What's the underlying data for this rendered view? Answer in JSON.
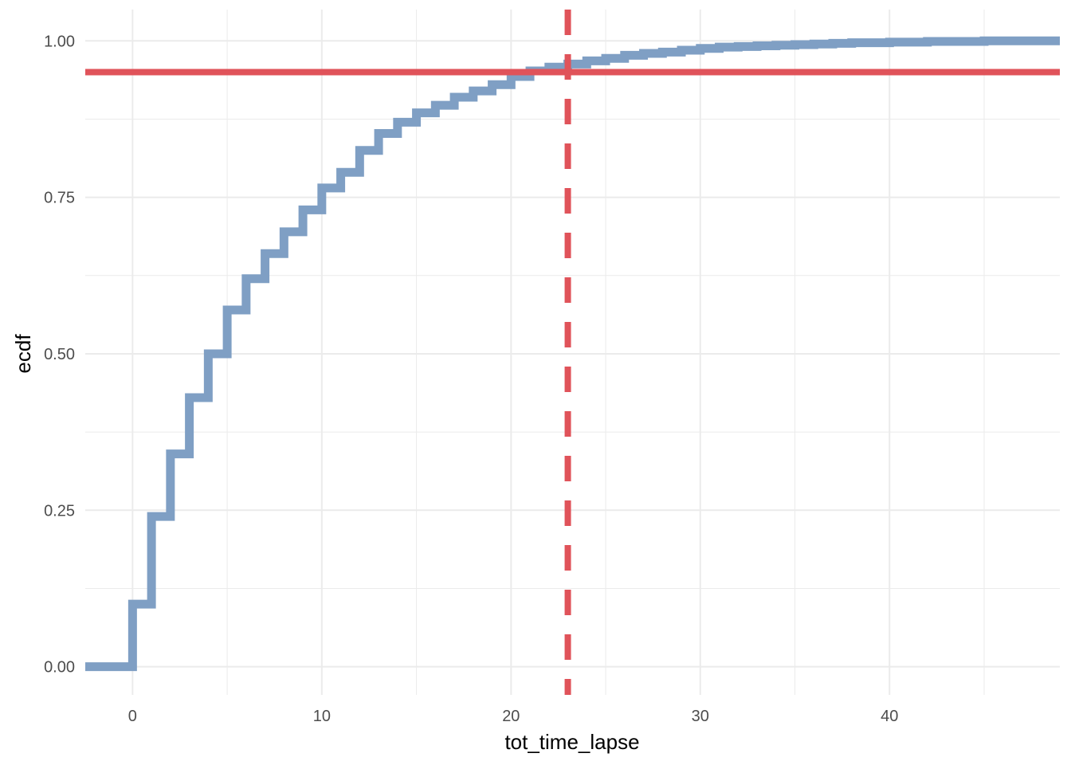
{
  "chart_data": {
    "type": "line",
    "step": true,
    "xlabel": "tot_time_lapse",
    "ylabel": "ecdf",
    "xlim": [
      -2.5,
      49
    ],
    "ylim": [
      -0.045,
      1.05
    ],
    "x_ticks": [
      0,
      10,
      20,
      30,
      40
    ],
    "x_minor_ticks": [
      5,
      15,
      25,
      35,
      45
    ],
    "y_ticks": [
      0.0,
      0.25,
      0.5,
      0.75,
      1.0
    ],
    "y_tick_labels": [
      "0.00",
      "0.25",
      "0.50",
      "0.75",
      "1.00"
    ],
    "y_minor_ticks": [
      0.125,
      0.375,
      0.625,
      0.875
    ],
    "grid": true,
    "series": [
      {
        "color": "#7f9fc4",
        "x": [
          -2.5,
          0,
          1,
          2,
          3,
          4,
          5,
          6,
          7,
          8,
          9,
          10,
          11,
          12,
          13,
          14,
          15,
          16,
          17,
          18,
          19,
          20,
          21,
          22,
          23,
          24,
          25,
          26,
          27,
          28,
          29,
          30,
          31,
          32,
          33,
          34,
          35,
          36,
          37,
          38,
          39,
          40,
          41,
          42,
          43,
          44,
          45,
          46,
          47,
          48,
          49
        ],
        "y": [
          0.0,
          0.1,
          0.24,
          0.34,
          0.43,
          0.5,
          0.57,
          0.62,
          0.66,
          0.695,
          0.73,
          0.765,
          0.79,
          0.825,
          0.852,
          0.87,
          0.885,
          0.897,
          0.91,
          0.92,
          0.93,
          0.943,
          0.952,
          0.958,
          0.963,
          0.968,
          0.972,
          0.977,
          0.98,
          0.982,
          0.985,
          0.988,
          0.99,
          0.991,
          0.992,
          0.993,
          0.994,
          0.995,
          0.996,
          0.997,
          0.997,
          0.998,
          0.998,
          0.999,
          0.999,
          0.999,
          1.0,
          1.0,
          1.0,
          1.0,
          1.0
        ]
      }
    ],
    "reference_lines": [
      {
        "orientation": "horizontal",
        "value": 0.95,
        "style": "solid",
        "color": "#e0535a"
      },
      {
        "orientation": "vertical",
        "value": 23,
        "style": "dashed",
        "color": "#e0535a"
      }
    ],
    "colors": {
      "grid": "#ebebeb"
    }
  }
}
